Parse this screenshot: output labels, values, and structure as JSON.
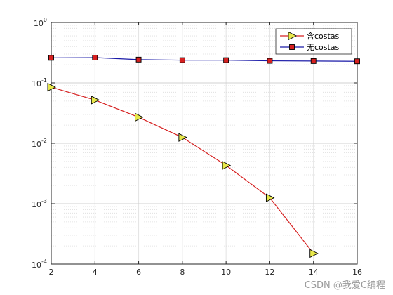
{
  "chart_data": {
    "type": "line",
    "x_ticks": [
      2,
      4,
      6,
      8,
      10,
      12,
      14,
      16
    ],
    "y_ticks": [
      {
        "base": "10",
        "exp": "0",
        "value": 1
      },
      {
        "base": "10",
        "exp": "-1",
        "value": 0.1
      },
      {
        "base": "10",
        "exp": "-2",
        "value": 0.01
      },
      {
        "base": "10",
        "exp": "-3",
        "value": 0.001
      },
      {
        "base": "10",
        "exp": "-4",
        "value": 0.0001
      }
    ],
    "xlim": [
      2,
      16
    ],
    "ylim": [
      0.0001,
      1
    ],
    "yscale": "log",
    "grid": true,
    "legend_position": "top-right",
    "series": [
      {
        "name": "含costas",
        "color": "#d62020",
        "marker": "triangle-right",
        "marker_fill": "#e8e84a",
        "x": [
          2,
          4,
          6,
          8,
          10,
          12,
          14
        ],
        "y": [
          0.085,
          0.052,
          0.027,
          0.0125,
          0.0043,
          0.00125,
          0.00015
        ]
      },
      {
        "name": "无costas",
        "color": "#1a1aa8",
        "marker": "square",
        "marker_fill": "#d62020",
        "x": [
          2,
          4,
          6,
          8,
          10,
          12,
          14,
          16
        ],
        "y": [
          0.26,
          0.262,
          0.243,
          0.238,
          0.238,
          0.232,
          0.23,
          0.228
        ]
      }
    ]
  },
  "watermark": "CSDN @我爱C编程"
}
